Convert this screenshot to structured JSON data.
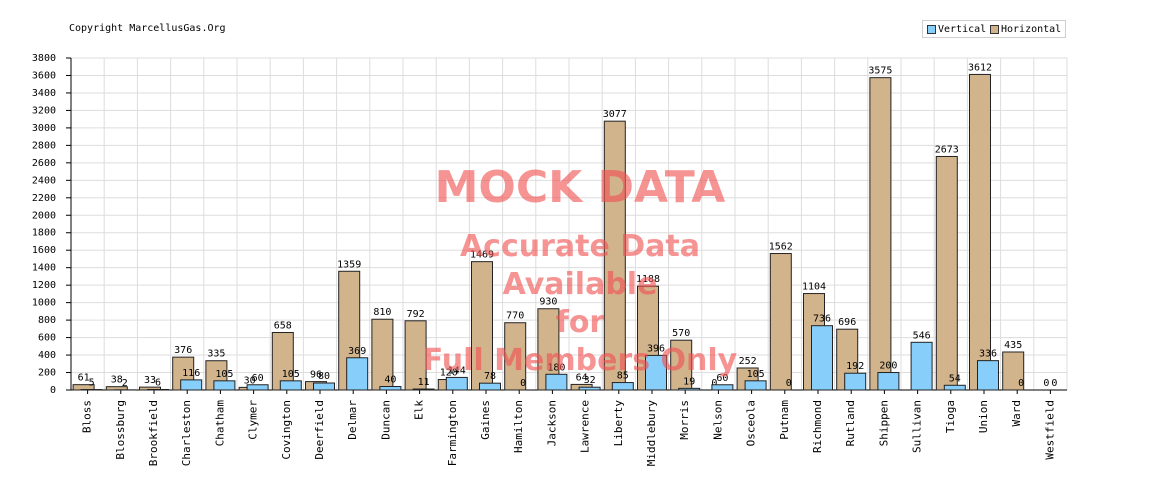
{
  "copyright": "Copyright MarcellusGas.Org",
  "watermark": {
    "title": "MOCK DATA",
    "line1": "Accurate Data Available",
    "line2": "for",
    "line3": "Full Members Only"
  },
  "colors": {
    "vertical": "#87cefa",
    "horizontal": "#d2b48c",
    "grid": "#dddddd",
    "axis": "#000000"
  },
  "chart_data": {
    "type": "bar",
    "title": "",
    "xlabel": "",
    "ylabel": "",
    "ylim": [
      0,
      3800
    ],
    "yticks": [
      0,
      200,
      400,
      600,
      800,
      1000,
      1200,
      1400,
      1600,
      1800,
      2000,
      2200,
      2400,
      2600,
      2800,
      3000,
      3200,
      3400,
      3600,
      3800
    ],
    "grid": true,
    "legend_position": "top-right",
    "categories": [
      "Bloss",
      "Blossburg",
      "Brookfield",
      "Charleston",
      "Chatham",
      "Clymer",
      "Covington",
      "Deerfield",
      "Delmar",
      "Duncan",
      "Elk",
      "Farmington",
      "Gaines",
      "Hamilton",
      "Jackson",
      "Lawrence",
      "Liberty",
      "Middlebury",
      "Morris",
      "Nelson",
      "Osceola",
      "Putnam",
      "Richmond",
      "Rutland",
      "Shippen",
      "Sullivan",
      "Tioga",
      "Union",
      "Ward",
      "Westfield"
    ],
    "series": [
      {
        "name": "Vertical",
        "values": [
          5,
          2,
          6,
          116,
          105,
          60,
          105,
          80,
          369,
          40,
          11,
          144,
          78,
          0,
          180,
          32,
          85,
          396,
          19,
          60,
          105,
          0,
          736,
          192,
          200,
          546,
          54,
          336,
          0,
          0
        ]
      },
      {
        "name": "Horizontal",
        "values": [
          61,
          38,
          33,
          376,
          335,
          30,
          658,
          96,
          1359,
          810,
          792,
          120,
          1469,
          770,
          930,
          64,
          3077,
          1188,
          570,
          0,
          252,
          1562,
          1104,
          696,
          3575,
          0,
          2673,
          3612,
          435,
          0
        ]
      }
    ]
  }
}
